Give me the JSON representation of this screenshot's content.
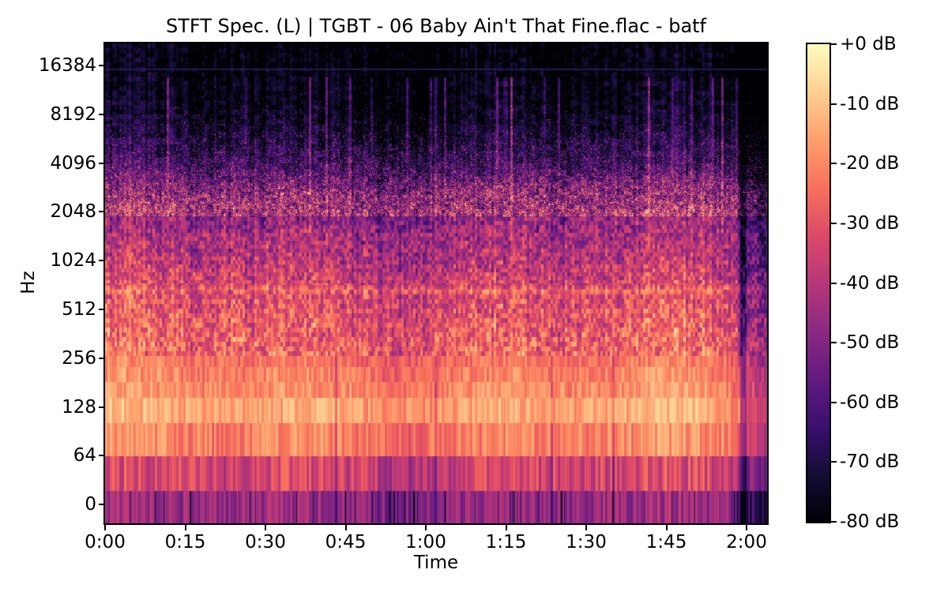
{
  "chart_data": {
    "type": "heatmap",
    "subtype": "stft-spectrogram",
    "title": "STFT Spec. (L) | TGBT - 06 Baby Ain't That Fine.flac - batf",
    "xlabel": "Time",
    "ylabel": "Hz",
    "x_ticks": [
      "0:00",
      "0:15",
      "0:30",
      "0:45",
      "1:00",
      "1:15",
      "1:30",
      "1:45",
      "2:00"
    ],
    "x_range_seconds": [
      0,
      124
    ],
    "y_ticks": [
      "16384",
      "8192",
      "4096",
      "2048",
      "1024",
      "512",
      "256",
      "128",
      "64",
      "0"
    ],
    "y_scale": "log-frequency",
    "grid": false,
    "legend_position": "none",
    "colorbar": {
      "ticks": [
        "+0 dB",
        "-10 dB",
        "-20 dB",
        "-30 dB",
        "-40 dB",
        "-50 dB",
        "-60 dB",
        "-70 dB",
        "-80 dB"
      ],
      "vmax_db": 0,
      "vmin_db": -80,
      "colormap": "magma",
      "stops": [
        "#000004",
        "#140e36",
        "#3b0f70",
        "#641a80",
        "#8c2981",
        "#b73779",
        "#de4968",
        "#f7705c",
        "#fe9f6d",
        "#fecf92",
        "#fcfdbf"
      ]
    },
    "spectrum_profile_db": [
      [
        0.0,
        -80
      ],
      [
        0.051,
        -80
      ],
      [
        0.074,
        -79
      ],
      [
        0.148,
        -77
      ],
      [
        0.197,
        -73
      ],
      [
        0.25,
        -68
      ],
      [
        0.296,
        -59
      ],
      [
        0.35,
        -51
      ],
      [
        0.403,
        -44
      ],
      [
        0.452,
        -40
      ],
      [
        0.489,
        -36
      ],
      [
        0.503,
        -35
      ],
      [
        0.514,
        -26
      ],
      [
        0.526,
        -33
      ],
      [
        0.554,
        -31
      ],
      [
        0.6,
        -28.5
      ],
      [
        0.65,
        -26
      ]
    ],
    "low_freq_bins": [
      {
        "from": 0.65,
        "to": 0.674,
        "db": -24,
        "stripe": 6
      },
      {
        "from": 0.674,
        "to": 0.704,
        "db": -21,
        "stripe": 6
      },
      {
        "from": 0.704,
        "to": 0.737,
        "db": -19,
        "stripe": 6
      },
      {
        "from": 0.737,
        "to": 0.79,
        "db": -15,
        "stripe": 6
      },
      {
        "from": 0.79,
        "to": 0.86,
        "db": -21,
        "stripe": 7
      },
      {
        "from": 0.86,
        "to": 0.931,
        "db": -35,
        "stripe": 9
      },
      {
        "from": 0.931,
        "to": 1.0,
        "db": -47,
        "stripe": 8
      }
    ],
    "features": {
      "cutoff_line": {
        "freq_hz": 16384,
        "y_fraction": 0.0527,
        "color": "#282064"
      },
      "end_fade_db": -20,
      "end_fade_start_fraction": 0.938,
      "end_dark_column_fraction": 0.96
    }
  }
}
